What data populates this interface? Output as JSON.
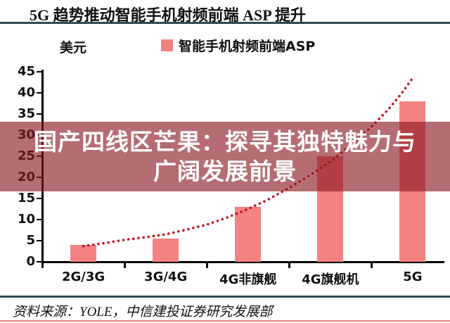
{
  "header": {
    "title": "5G 趋势推动智能手机射频前端 ASP 提升"
  },
  "chart": {
    "unit_label": "美元",
    "legend_label": "智能手机射频前端ASP",
    "legend_color": "#F28080"
  },
  "chart_data": {
    "type": "bar",
    "title": "5G 趋势推动智能手机射频前端 ASP 提升",
    "xlabel": "",
    "ylabel": "美元",
    "categories": [
      "2G/3G",
      "3G/4G",
      "4G非旗舰",
      "4G旗舰机",
      "5G"
    ],
    "series": [
      {
        "name": "智能手机射频前端ASP",
        "values": [
          4,
          5.5,
          13,
          25,
          38
        ]
      }
    ],
    "ylim": [
      0,
      45
    ],
    "yticks": [
      0,
      5,
      10,
      15,
      20,
      25,
      30,
      35,
      40,
      45
    ],
    "grid": false,
    "legend_position": "top",
    "bar_color": "#F48282",
    "trend": {
      "style": "dotted",
      "color": "#C3101F",
      "points": [
        [
          0.5,
          3.7
        ],
        [
          0.75,
          4.4
        ],
        [
          1.0,
          5.2
        ],
        [
          1.25,
          5.8
        ],
        [
          1.5,
          6.5
        ],
        [
          1.75,
          7.6
        ],
        [
          2.0,
          8.8
        ],
        [
          2.25,
          10.5
        ],
        [
          2.5,
          12.5
        ],
        [
          2.75,
          14.8
        ],
        [
          3.0,
          17.5
        ],
        [
          3.25,
          20.5
        ],
        [
          3.5,
          23.7
        ],
        [
          3.75,
          27.6
        ],
        [
          4.0,
          32.0
        ],
        [
          4.2,
          36.0
        ],
        [
          4.35,
          39.5
        ],
        [
          4.5,
          43.5
        ]
      ]
    }
  },
  "overlay": {
    "line1": "国产四线区芒果：探寻其独特魅力与",
    "line2": "广阔发展前景"
  },
  "footer": {
    "source": "资料来源：YOLE，中信建投证券研究发展部"
  }
}
